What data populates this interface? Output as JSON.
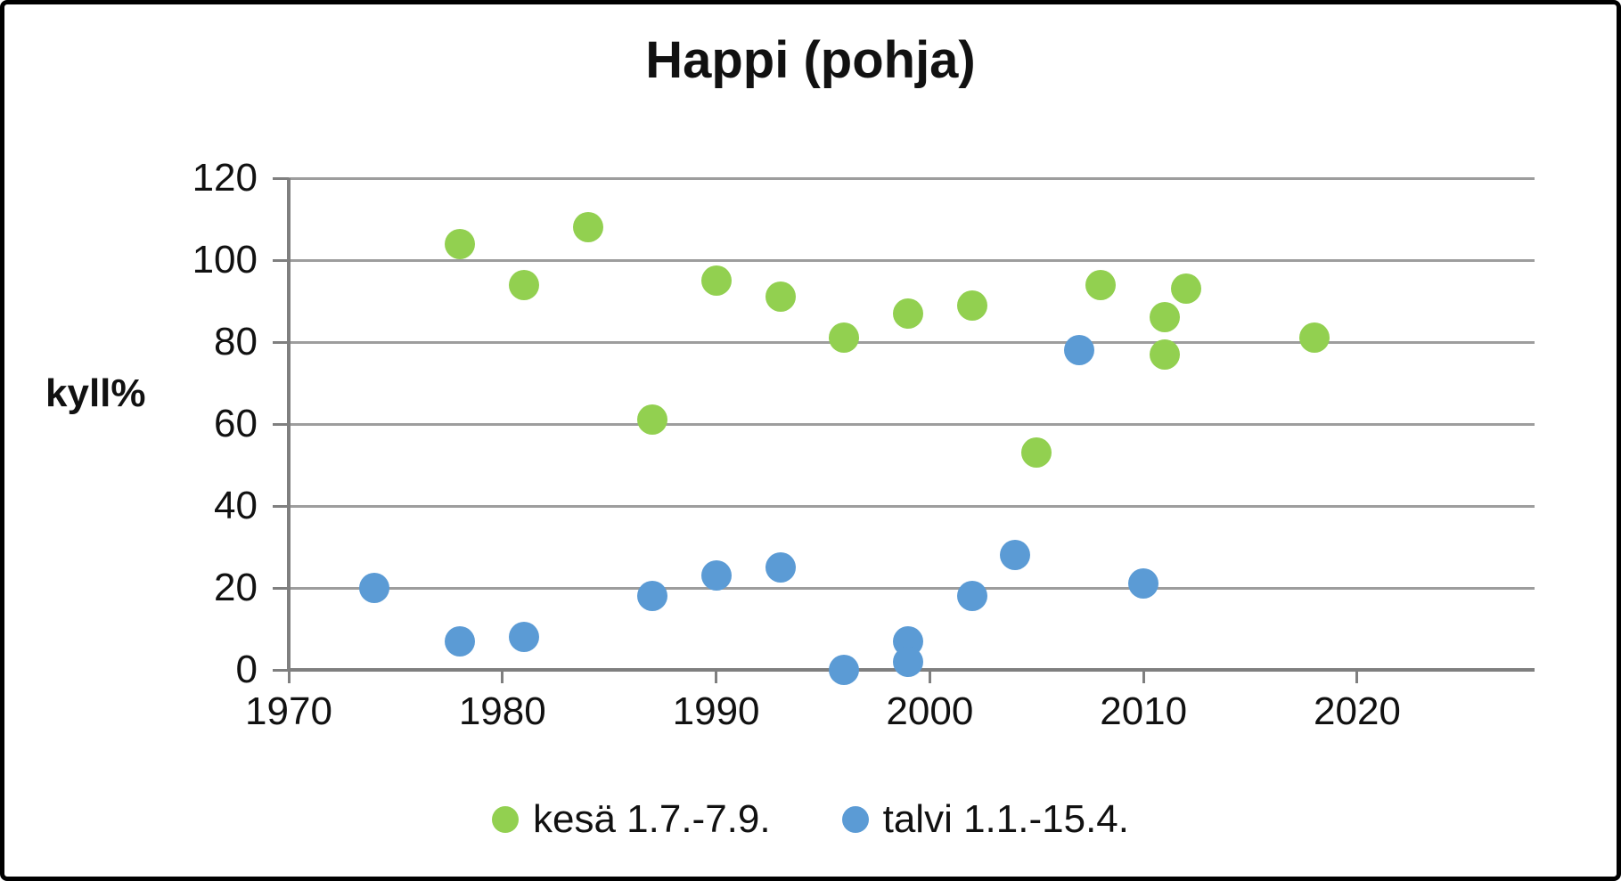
{
  "title": "Happi (pohja)",
  "chart_data": {
    "type": "scatter",
    "title": "Happi (pohja)",
    "xlabel": "",
    "ylabel": "kyll%",
    "xlim": [
      1970,
      2028.3
    ],
    "ylim": [
      0,
      120
    ],
    "x_ticks": [
      1970,
      1980,
      1990,
      2000,
      2010,
      2020
    ],
    "y_ticks": [
      0,
      20,
      40,
      60,
      80,
      100,
      120
    ],
    "grid": "horizontal",
    "legend_position": "bottom",
    "series": [
      {
        "name": "kesä 1.7.-7.9.",
        "color": "#92D050",
        "points": [
          [
            1978,
            104
          ],
          [
            1981,
            94
          ],
          [
            1984,
            108
          ],
          [
            1987,
            61
          ],
          [
            1990,
            95
          ],
          [
            1993,
            91
          ],
          [
            1996,
            81
          ],
          [
            1999,
            87
          ],
          [
            2002,
            89
          ],
          [
            2005,
            53
          ],
          [
            2008,
            94
          ],
          [
            2011,
            77
          ],
          [
            2011,
            86
          ],
          [
            2012,
            93
          ],
          [
            2018,
            81
          ]
        ]
      },
      {
        "name": "talvi 1.1.-15.4.",
        "color": "#5B9BD5",
        "points": [
          [
            1974,
            20
          ],
          [
            1978,
            7
          ],
          [
            1981,
            8
          ],
          [
            1987,
            18
          ],
          [
            1990,
            23
          ],
          [
            1993,
            25
          ],
          [
            1996,
            0
          ],
          [
            1999,
            7
          ],
          [
            1999,
            2
          ],
          [
            2002,
            18
          ],
          [
            2004,
            28
          ],
          [
            2007,
            78
          ],
          [
            2010,
            21
          ]
        ]
      }
    ]
  }
}
